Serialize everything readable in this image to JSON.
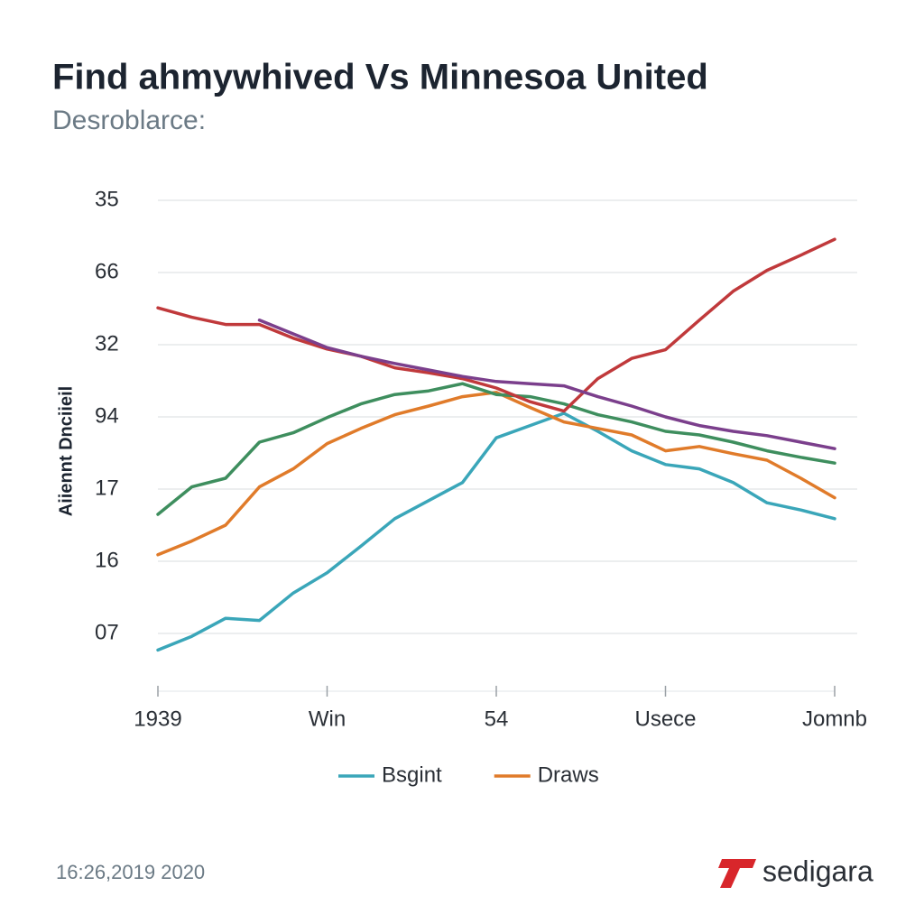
{
  "chart_data": {
    "type": "line",
    "title": "Find ahmywhived Vs Minnesoa United",
    "subtitle": "Desroblarce:",
    "y_label": "Aiiennt Dnciieil",
    "x": [
      0,
      1,
      2,
      3,
      4,
      5,
      6,
      7,
      8,
      9,
      10,
      11,
      12,
      13,
      14,
      15,
      16,
      17,
      18,
      19,
      20
    ],
    "xlim": [
      0,
      20
    ],
    "xticks": [
      {
        "value": 0,
        "label": "1939"
      },
      {
        "value": 5,
        "label": "Win"
      },
      {
        "value": 10,
        "label": "54"
      },
      {
        "value": 15,
        "label": "Usece"
      },
      {
        "value": 20,
        "label": "Jomnb"
      }
    ],
    "ylim": [
      -0.8,
      6
    ],
    "yticks": [
      {
        "value": 0,
        "label": "07"
      },
      {
        "value": 1,
        "label": "16"
      },
      {
        "value": 2,
        "label": "17"
      },
      {
        "value": 3,
        "label": "94"
      },
      {
        "value": 4,
        "label": "32"
      },
      {
        "value": 5,
        "label": "66"
      },
      {
        "value": 6,
        "label": "35"
      }
    ],
    "grid": true,
    "series": [
      {
        "name": "Bsgint",
        "color": "#3aa6b9",
        "values": [
          -0.23,
          -0.04,
          0.21,
          0.18,
          0.56,
          0.84,
          1.21,
          1.59,
          1.84,
          2.09,
          2.71,
          2.88,
          3.05,
          2.8,
          2.53,
          2.34,
          2.28,
          2.09,
          1.81,
          1.71,
          1.59
        ]
      },
      {
        "name": "Draws",
        "color": "#e07b2a",
        "values": [
          1.09,
          1.28,
          1.5,
          2.03,
          2.28,
          2.63,
          2.84,
          3.03,
          3.15,
          3.28,
          3.34,
          3.13,
          2.93,
          2.84,
          2.75,
          2.53,
          2.59,
          2.49,
          2.4,
          2.15,
          1.88
        ]
      },
      {
        "color": "#3e8e5e",
        "values": [
          1.65,
          2.03,
          2.15,
          2.65,
          2.78,
          2.99,
          3.18,
          3.31,
          3.36,
          3.46,
          3.31,
          3.28,
          3.18,
          3.03,
          2.93,
          2.8,
          2.75,
          2.65,
          2.53,
          2.44,
          2.36
        ]
      },
      {
        "color": "#c0393b",
        "values": [
          4.51,
          4.38,
          4.28,
          4.28,
          4.09,
          3.94,
          3.84,
          3.68,
          3.61,
          3.53,
          3.4,
          3.21,
          3.08,
          3.53,
          3.81,
          3.93,
          4.34,
          4.74,
          5.03,
          5.24,
          5.46
        ]
      },
      {
        "color": "#7b3f8c",
        "values": [
          null,
          null,
          null,
          4.34,
          4.15,
          3.96,
          3.84,
          3.74,
          3.65,
          3.56,
          3.49,
          3.46,
          3.43,
          3.28,
          3.15,
          3.0,
          2.88,
          2.8,
          2.74,
          2.65,
          2.56
        ]
      }
    ],
    "footer": "16:26,2019 2020",
    "brand": "sedigara"
  }
}
